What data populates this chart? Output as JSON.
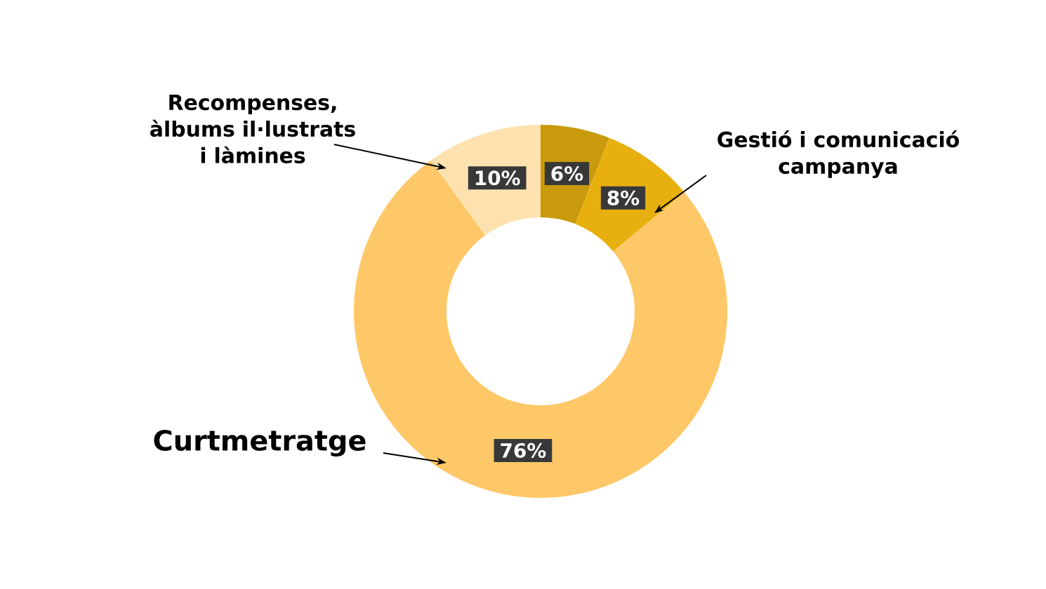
{
  "chart_data": {
    "type": "donut",
    "categories": [
      null,
      "Gestió i comunicació campanya",
      "Curtmetratge",
      "Recompenses, àlbums il·lustrats i làmines"
    ],
    "values": [
      6,
      8,
      76,
      10
    ],
    "value_labels": [
      "6%",
      "8%",
      "76%",
      "10%"
    ],
    "colors": [
      "#c89a0c",
      "#e8b00e",
      "#fec868",
      "#fde2b0"
    ]
  }
}
